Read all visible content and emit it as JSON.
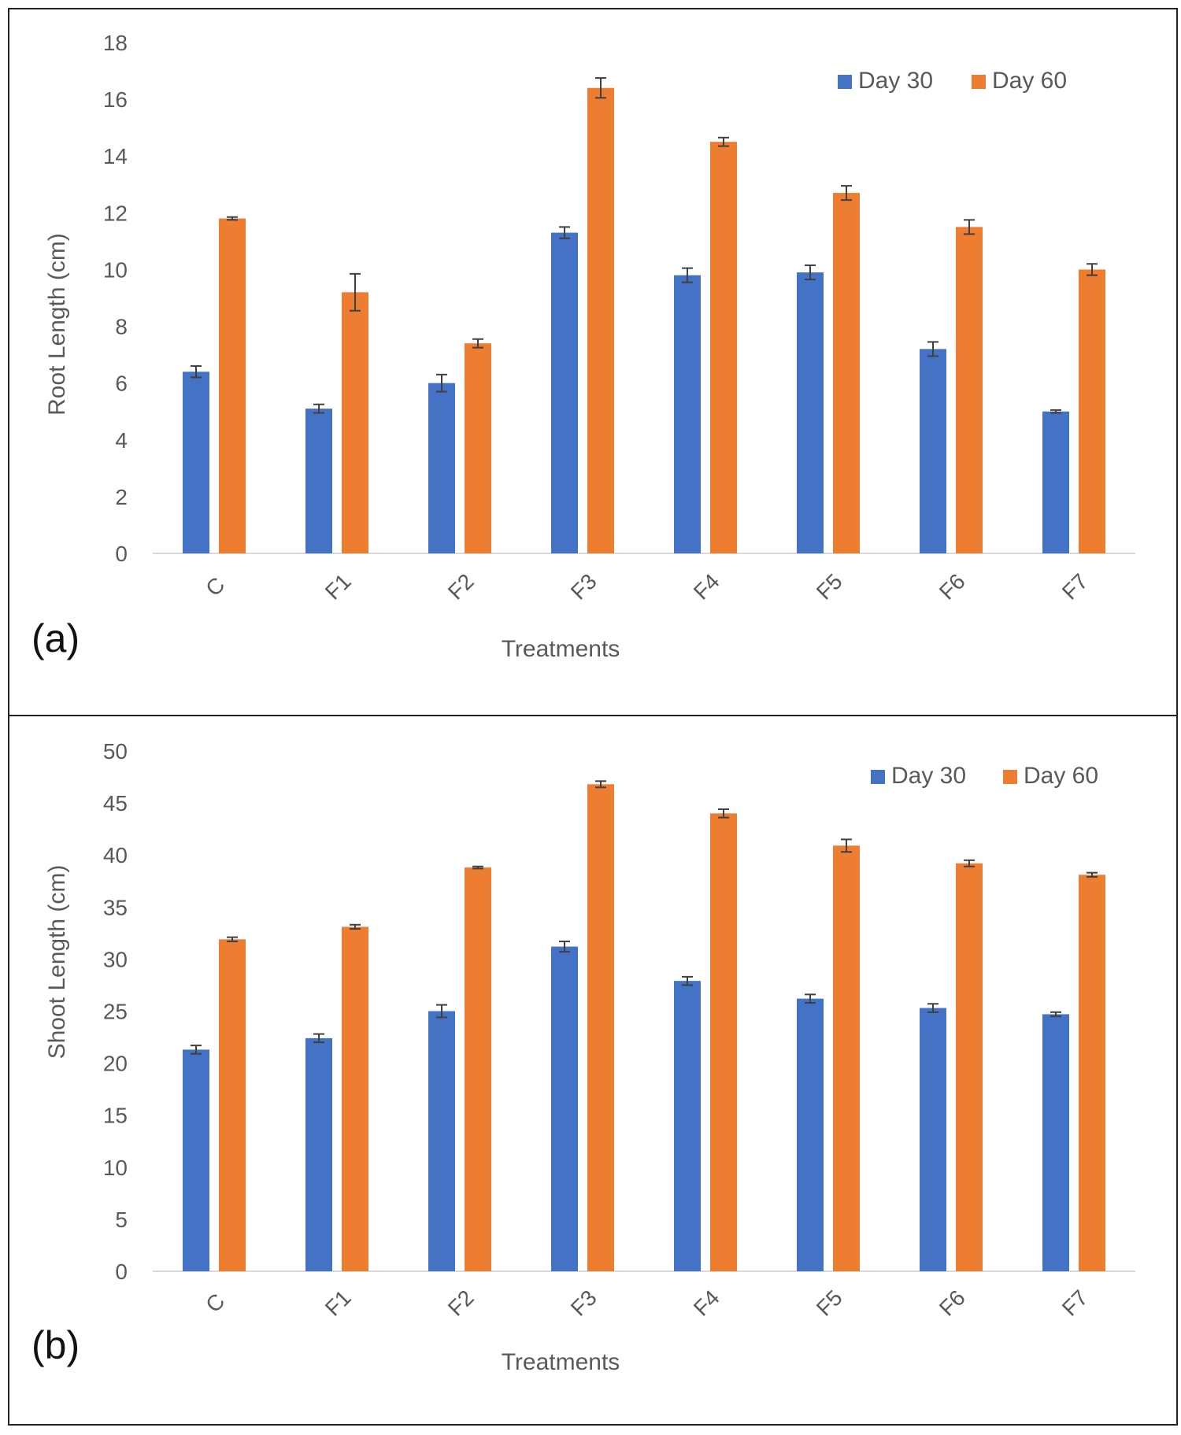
{
  "chart_data": [
    {
      "panel_label": "(a)",
      "type": "bar",
      "categories": [
        "C",
        "F1",
        "F2",
        "F3",
        "F4",
        "F5",
        "F6",
        "F7"
      ],
      "series": [
        {
          "name": "Day 30",
          "color": "#4472C4",
          "values": [
            6.4,
            5.1,
            6.0,
            11.3,
            9.8,
            9.9,
            7.2,
            5.0
          ],
          "errors": [
            0.2,
            0.15,
            0.3,
            0.2,
            0.25,
            0.25,
            0.25,
            0.05
          ]
        },
        {
          "name": "Day 60",
          "color": "#ED7D31",
          "values": [
            11.8,
            9.2,
            7.4,
            16.4,
            14.5,
            12.7,
            11.5,
            10.0
          ],
          "errors": [
            0.05,
            0.65,
            0.15,
            0.35,
            0.15,
            0.25,
            0.25,
            0.2
          ]
        }
      ],
      "title": "",
      "xlabel": "Treatments",
      "ylabel": "Root Length (cm)",
      "ylim": [
        0,
        18
      ],
      "yticks": [
        0,
        2,
        4,
        6,
        8,
        10,
        12,
        14,
        16,
        18
      ],
      "grid": false,
      "legend": "top-right"
    },
    {
      "panel_label": "(b)",
      "type": "bar",
      "categories": [
        "C",
        "F1",
        "F2",
        "F3",
        "F4",
        "F5",
        "F6",
        "F7"
      ],
      "series": [
        {
          "name": "Day 30",
          "color": "#4472C4",
          "values": [
            21.3,
            22.4,
            25.0,
            31.2,
            27.9,
            26.2,
            25.3,
            24.7
          ],
          "errors": [
            0.4,
            0.4,
            0.6,
            0.5,
            0.4,
            0.4,
            0.4,
            0.2
          ]
        },
        {
          "name": "Day 60",
          "color": "#ED7D31",
          "values": [
            31.9,
            33.1,
            38.8,
            46.8,
            44.0,
            40.9,
            39.2,
            38.1
          ],
          "errors": [
            0.2,
            0.2,
            0.1,
            0.3,
            0.4,
            0.6,
            0.3,
            0.2
          ]
        }
      ],
      "title": "",
      "xlabel": "Treatments",
      "ylabel": "Shoot Length (cm)",
      "ylim": [
        0,
        50
      ],
      "yticks": [
        0,
        5,
        10,
        15,
        20,
        25,
        30,
        35,
        40,
        45,
        50
      ],
      "grid": false,
      "legend": "top-right"
    }
  ]
}
